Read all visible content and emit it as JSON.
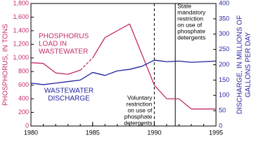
{
  "chart_data": {
    "type": "line",
    "x": [
      1980,
      1981,
      1982,
      1983,
      1984,
      1985,
      1986,
      1987,
      1988,
      1989,
      1990,
      1991,
      1992,
      1993,
      1994,
      1995
    ],
    "series": [
      {
        "name": [
          "PHOSPHORUS",
          "LOAD IN",
          "WASTEWATER"
        ],
        "color": "#c42a6c",
        "axis": "y",
        "dashed_x_range": [
          1984,
          1985
        ],
        "values": [
          930,
          920,
          780,
          760,
          820,
          1000,
          1300,
          1400,
          1500,
          1050,
          600,
          400,
          400,
          250,
          250,
          250
        ]
      },
      {
        "name": [
          "WASTEWATER",
          "DISCHARGE"
        ],
        "color": "#1f1f9c",
        "axis": "y2",
        "values": [
          140,
          135,
          140,
          145,
          150,
          175,
          165,
          180,
          185,
          195,
          215,
          210,
          212,
          208,
          210,
          212
        ]
      }
    ],
    "ylabel": "PHOSPHORUS, IN TONS",
    "y2label": [
      "DISCHARGE, IN MILLIONS OF",
      "GALLONS PER DAY"
    ],
    "xlim": [
      1980,
      1995
    ],
    "xticks": [
      1980,
      1985,
      1990,
      1995
    ],
    "ylim": [
      0,
      1800
    ],
    "yticks": [
      0,
      {
        "value": 200,
        "label": "200"
      },
      400,
      600,
      800,
      {
        "value": 1000,
        "label": "1,000"
      },
      {
        "value": 1200,
        "label": "1,200"
      },
      {
        "value": 1400,
        "label": "1,400"
      },
      {
        "value": 1600,
        "label": "1,600"
      },
      {
        "value": 1800,
        "label": "1,800"
      }
    ],
    "y2lim": [
      0,
      400
    ],
    "y2ticks": [
      0,
      50,
      100,
      150,
      200,
      250,
      300,
      350,
      400
    ],
    "annotations": [
      {
        "x": 1990,
        "style": "dashed",
        "side": "left",
        "text": [
          "Voluntary",
          "restriction",
          "on use of",
          "phosphate",
          "detergents"
        ]
      },
      {
        "x": 1991.7,
        "style": "solid",
        "side": "right",
        "text": [
          "State",
          "mandatory",
          "restriction",
          "on use of",
          "phosphate",
          "detergents"
        ]
      }
    ]
  }
}
